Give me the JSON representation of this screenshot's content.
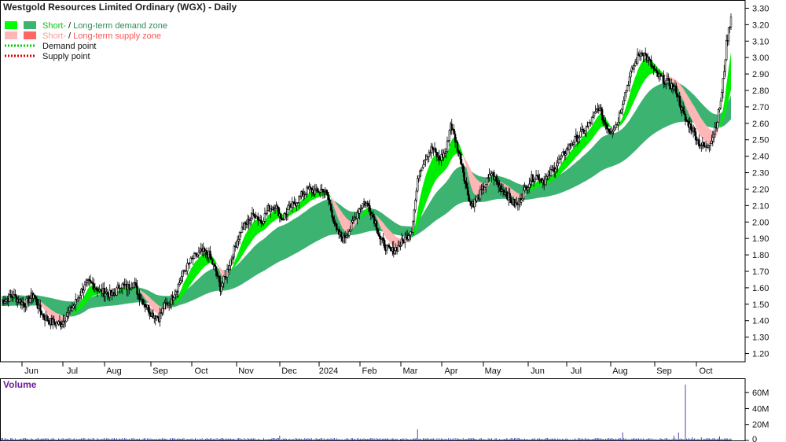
{
  "chart_data": [
    {
      "type": "candlestick",
      "title": "Westgold Resources Limited Ordinary (WGX) - Daily",
      "legend": [
        {
          "swatches": [
            "#00ff00",
            "#3cb371"
          ],
          "parts": [
            {
              "t": "Short-",
              "c": "#00cc00"
            },
            {
              "t": " / ",
              "c": "#111111"
            },
            {
              "t": "Long-term demand zone",
              "c": "#2e8b57"
            }
          ]
        },
        {
          "swatches": [
            "#ffb6b6",
            "#ff6666"
          ],
          "parts": [
            {
              "t": "Short-",
              "c": "#ff9999"
            },
            {
              "t": " / ",
              "c": "#111111"
            },
            {
              "t": "Long-term supply zone",
              "c": "#ff5555"
            }
          ]
        },
        {
          "dotted": "#00cc00",
          "parts": [
            {
              "t": "Demand point",
              "c": "#111111"
            }
          ]
        },
        {
          "dotted": "#dd0000",
          "parts": [
            {
              "t": "Supply point",
              "c": "#111111"
            }
          ]
        }
      ],
      "x_ticks": [
        "Jun",
        "Jul",
        "Aug",
        "Sep",
        "Oct",
        "Nov",
        "Dec",
        "2024",
        "Feb",
        "Mar",
        "Apr",
        "May",
        "Jun",
        "Jul",
        "Aug",
        "Sep",
        "Oct"
      ],
      "y_ticks": [
        "3.30",
        "3.20",
        "3.10",
        "3.00",
        "2.90",
        "2.80",
        "2.70",
        "2.60",
        "2.50",
        "2.40",
        "2.30",
        "2.20",
        "2.10",
        "2.00",
        "1.90",
        "1.80",
        "1.70",
        "1.60",
        "1.50",
        "1.40",
        "1.30",
        "1.20"
      ],
      "ylim": [
        1.15,
        3.35
      ],
      "close_path": [
        [
          0,
          1.52
        ],
        [
          10,
          1.55
        ],
        [
          20,
          1.5
        ],
        [
          28,
          1.56
        ],
        [
          33,
          1.47
        ],
        [
          38,
          1.42
        ],
        [
          44,
          1.39
        ],
        [
          52,
          1.38
        ],
        [
          58,
          1.44
        ],
        [
          64,
          1.5
        ],
        [
          70,
          1.58
        ],
        [
          76,
          1.63
        ],
        [
          80,
          1.62
        ],
        [
          86,
          1.58
        ],
        [
          92,
          1.57
        ],
        [
          98,
          1.55
        ],
        [
          104,
          1.62
        ],
        [
          110,
          1.6
        ],
        [
          116,
          1.63
        ],
        [
          120,
          1.56
        ],
        [
          126,
          1.5
        ],
        [
          132,
          1.44
        ],
        [
          138,
          1.42
        ],
        [
          142,
          1.48
        ],
        [
          148,
          1.52
        ],
        [
          154,
          1.6
        ],
        [
          160,
          1.7
        ],
        [
          168,
          1.78
        ],
        [
          176,
          1.82
        ],
        [
          182,
          1.8
        ],
        [
          188,
          1.7
        ],
        [
          192,
          1.6
        ],
        [
          196,
          1.66
        ],
        [
          200,
          1.75
        ],
        [
          205,
          1.85
        ],
        [
          210,
          1.95
        ],
        [
          216,
          2.0
        ],
        [
          222,
          2.05
        ],
        [
          228,
          2.0
        ],
        [
          234,
          2.08
        ],
        [
          240,
          2.1
        ],
        [
          246,
          2.02
        ],
        [
          252,
          2.08
        ],
        [
          258,
          2.12
        ],
        [
          264,
          2.17
        ],
        [
          270,
          2.2
        ],
        [
          276,
          2.18
        ],
        [
          282,
          2.2
        ],
        [
          286,
          2.16
        ],
        [
          290,
          2.05
        ],
        [
          294,
          1.94
        ],
        [
          300,
          1.9
        ],
        [
          306,
          1.96
        ],
        [
          312,
          2.06
        ],
        [
          318,
          2.12
        ],
        [
          322,
          2.1
        ],
        [
          328,
          2.0
        ],
        [
          332,
          1.9
        ],
        [
          338,
          1.84
        ],
        [
          342,
          1.82
        ],
        [
          348,
          1.85
        ],
        [
          354,
          1.9
        ],
        [
          360,
          1.96
        ],
        [
          366,
          2.3
        ],
        [
          372,
          2.4
        ],
        [
          378,
          2.45
        ],
        [
          384,
          2.38
        ],
        [
          390,
          2.43
        ],
        [
          394,
          2.6
        ],
        [
          398,
          2.5
        ],
        [
          404,
          2.35
        ],
        [
          408,
          2.2
        ],
        [
          412,
          2.1
        ],
        [
          418,
          2.15
        ],
        [
          424,
          2.22
        ],
        [
          430,
          2.3
        ],
        [
          436,
          2.22
        ],
        [
          442,
          2.18
        ],
        [
          448,
          2.12
        ],
        [
          452,
          2.1
        ],
        [
          458,
          2.18
        ],
        [
          464,
          2.26
        ],
        [
          470,
          2.28
        ],
        [
          476,
          2.25
        ],
        [
          482,
          2.3
        ],
        [
          488,
          2.36
        ],
        [
          494,
          2.42
        ],
        [
          500,
          2.48
        ],
        [
          506,
          2.52
        ],
        [
          512,
          2.56
        ],
        [
          518,
          2.62
        ],
        [
          524,
          2.7
        ],
        [
          528,
          2.62
        ],
        [
          534,
          2.55
        ],
        [
          540,
          2.6
        ],
        [
          546,
          2.76
        ],
        [
          552,
          2.9
        ],
        [
          558,
          3.0
        ],
        [
          562,
          3.04
        ],
        [
          568,
          2.98
        ],
        [
          574,
          2.9
        ],
        [
          580,
          2.87
        ],
        [
          586,
          2.84
        ],
        [
          592,
          2.8
        ],
        [
          596,
          2.7
        ],
        [
          600,
          2.62
        ],
        [
          606,
          2.57
        ],
        [
          612,
          2.48
        ],
        [
          618,
          2.45
        ],
        [
          624,
          2.52
        ],
        [
          628,
          2.62
        ],
        [
          632,
          2.78
        ],
        [
          636,
          3.08
        ],
        [
          640,
          3.25
        ]
      ],
      "volume": {
        "label": "Volume",
        "y_ticks": [
          "60M",
          "40M",
          "20M",
          "0"
        ],
        "ylim": [
          0,
          72
        ],
        "spikes_millions": [
          [
            244,
            6
          ],
          [
            365,
            14
          ],
          [
            545,
            10
          ],
          [
            590,
            6
          ],
          [
            594,
            10
          ],
          [
            600,
            70
          ],
          [
            606,
            4
          ],
          [
            614,
            4
          ],
          [
            630,
            5
          ]
        ],
        "baseline_millions": 2
      }
    }
  ]
}
